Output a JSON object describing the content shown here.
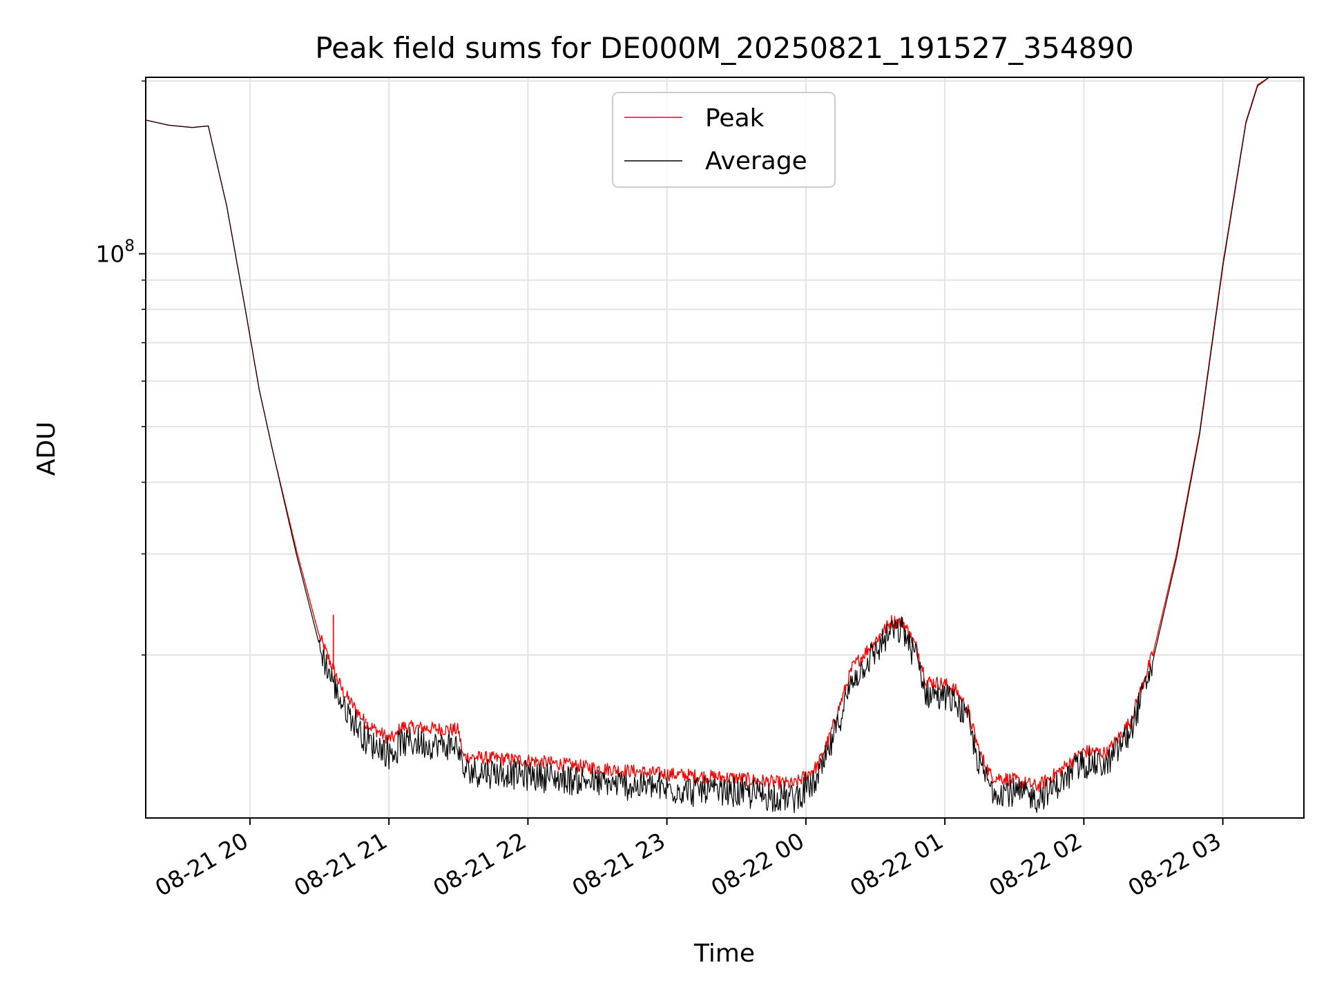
{
  "chart_data": {
    "type": "line",
    "title": "Peak field sums for DE000M_20250821_191527_354890",
    "xlabel": "Time",
    "ylabel": "ADU",
    "y_scale": "log",
    "xlim": [
      "2025-08-21 19:15",
      "2025-08-22 03:35"
    ],
    "ylim": [
      10400000,
      203000000
    ],
    "x_ticks": [
      "08-21 20",
      "08-21 21",
      "08-21 22",
      "08-21 23",
      "08-22 00",
      "08-22 01",
      "08-22 02",
      "08-22 03"
    ],
    "y_tick_label": {
      "base": "10",
      "exponent": "8"
    },
    "grid": true,
    "legend_position": "upper center",
    "series": [
      {
        "name": "Peak",
        "color": "#ff0000",
        "points": [
          [
            "2025-08-21 19:15",
            171000000
          ],
          [
            "2025-08-21 19:25",
            167500000
          ],
          [
            "2025-08-21 19:35",
            166000000
          ],
          [
            "2025-08-21 19:42",
            167000000
          ],
          [
            "2025-08-21 19:50",
            121000000
          ],
          [
            "2025-08-21 19:58",
            80000000
          ],
          [
            "2025-08-21 20:04",
            58000000
          ],
          [
            "2025-08-21 20:10",
            45000000
          ],
          [
            "2025-08-21 20:20",
            30500000
          ],
          [
            "2025-08-21 20:30",
            21500000
          ],
          [
            "2025-08-21 20:40",
            17300000
          ],
          [
            "2025-08-21 20:50",
            15200000
          ],
          [
            "2025-08-21 21:00",
            14300000
          ],
          [
            "2025-08-21 21:03",
            14400000
          ],
          [
            "2025-08-21 21:05",
            15000000
          ],
          [
            "2025-08-21 21:30",
            14800000
          ],
          [
            "2025-08-21 21:32",
            13300000
          ],
          [
            "2025-08-21 22:00",
            13100000
          ],
          [
            "2025-08-21 22:30",
            12700000
          ],
          [
            "2025-08-21 23:00",
            12400000
          ],
          [
            "2025-08-21 23:30",
            12200000
          ],
          [
            "2025-08-21 23:55",
            11900000
          ],
          [
            "2025-08-22 00:05",
            12800000
          ],
          [
            "2025-08-22 00:10",
            14300000
          ],
          [
            "2025-08-22 00:15",
            16500000
          ],
          [
            "2025-08-22 00:20",
            19000000
          ],
          [
            "2025-08-22 00:30",
            21200000
          ],
          [
            "2025-08-22 00:37",
            22900000
          ],
          [
            "2025-08-22 00:42",
            22800000
          ],
          [
            "2025-08-22 00:48",
            20500000
          ],
          [
            "2025-08-22 00:52",
            18000000
          ],
          [
            "2025-08-22 01:00",
            17800000
          ],
          [
            "2025-08-22 01:05",
            17300000
          ],
          [
            "2025-08-22 01:10",
            16000000
          ],
          [
            "2025-08-22 01:15",
            13500000
          ],
          [
            "2025-08-22 01:20",
            12300000
          ],
          [
            "2025-08-22 01:30",
            12100000
          ],
          [
            "2025-08-22 01:40",
            11800000
          ],
          [
            "2025-08-22 01:50",
            12600000
          ],
          [
            "2025-08-22 02:00",
            13600000
          ],
          [
            "2025-08-22 02:10",
            13500000
          ],
          [
            "2025-08-22 02:20",
            15300000
          ],
          [
            "2025-08-22 02:30",
            20200000
          ],
          [
            "2025-08-22 02:40",
            30000000
          ],
          [
            "2025-08-22 02:50",
            49000000
          ],
          [
            "2025-08-22 03:00",
            96000000
          ],
          [
            "2025-08-22 03:10",
            170000000
          ],
          [
            "2025-08-22 03:15",
            197000000
          ],
          [
            "2025-08-22 03:20",
            203000000
          ],
          [
            "2025-08-22 03:35",
            203000000
          ]
        ],
        "spikes": [
          [
            "2025-08-21 20:36",
            23500000
          ],
          [
            "2025-08-21 20:43",
            16500000
          ],
          [
            "2025-08-21 20:50",
            15500000
          ]
        ]
      },
      {
        "name": "Average",
        "color": "#000000",
        "points": [
          [
            "2025-08-21 19:15",
            171000000
          ],
          [
            "2025-08-21 19:25",
            167500000
          ],
          [
            "2025-08-21 19:35",
            166000000
          ],
          [
            "2025-08-21 19:42",
            167000000
          ],
          [
            "2025-08-21 19:50",
            121000000
          ],
          [
            "2025-08-21 19:58",
            80000000
          ],
          [
            "2025-08-21 20:04",
            58000000
          ],
          [
            "2025-08-21 20:10",
            45000000
          ],
          [
            "2025-08-21 20:20",
            30000000
          ],
          [
            "2025-08-21 20:30",
            20800000
          ],
          [
            "2025-08-21 20:40",
            16500000
          ],
          [
            "2025-08-21 20:50",
            14400000
          ],
          [
            "2025-08-21 21:00",
            13600000
          ],
          [
            "2025-08-21 21:03",
            13700000
          ],
          [
            "2025-08-21 21:05",
            14300000
          ],
          [
            "2025-08-21 21:30",
            14000000
          ],
          [
            "2025-08-21 21:32",
            12700000
          ],
          [
            "2025-08-21 22:00",
            12500000
          ],
          [
            "2025-08-21 22:30",
            12100000
          ],
          [
            "2025-08-21 23:00",
            11800000
          ],
          [
            "2025-08-21 23:30",
            11600000
          ],
          [
            "2025-08-21 23:55",
            11400000
          ],
          [
            "2025-08-22 00:05",
            12200000
          ],
          [
            "2025-08-22 00:10",
            13700000
          ],
          [
            "2025-08-22 00:15",
            15900000
          ],
          [
            "2025-08-22 00:20",
            18300000
          ],
          [
            "2025-08-22 00:30",
            20500000
          ],
          [
            "2025-08-22 00:37",
            22300000
          ],
          [
            "2025-08-22 00:42",
            22200000
          ],
          [
            "2025-08-22 00:48",
            19900000
          ],
          [
            "2025-08-22 00:52",
            17300000
          ],
          [
            "2025-08-22 01:00",
            17100000
          ],
          [
            "2025-08-22 01:05",
            16700000
          ],
          [
            "2025-08-22 01:10",
            15400000
          ],
          [
            "2025-08-22 01:15",
            13000000
          ],
          [
            "2025-08-22 01:20",
            11800000
          ],
          [
            "2025-08-22 01:30",
            11600000
          ],
          [
            "2025-08-22 01:40",
            11400000
          ],
          [
            "2025-08-22 01:50",
            12100000
          ],
          [
            "2025-08-22 02:00",
            13100000
          ],
          [
            "2025-08-22 02:10",
            13000000
          ],
          [
            "2025-08-22 02:20",
            14800000
          ],
          [
            "2025-08-22 02:30",
            19700000
          ],
          [
            "2025-08-22 02:40",
            29500000
          ],
          [
            "2025-08-22 02:50",
            48500000
          ],
          [
            "2025-08-22 03:00",
            95000000
          ],
          [
            "2025-08-22 03:10",
            169000000
          ],
          [
            "2025-08-22 03:15",
            196000000
          ],
          [
            "2025-08-22 03:20",
            203000000
          ],
          [
            "2025-08-22 03:35",
            203000000
          ]
        ]
      }
    ]
  }
}
